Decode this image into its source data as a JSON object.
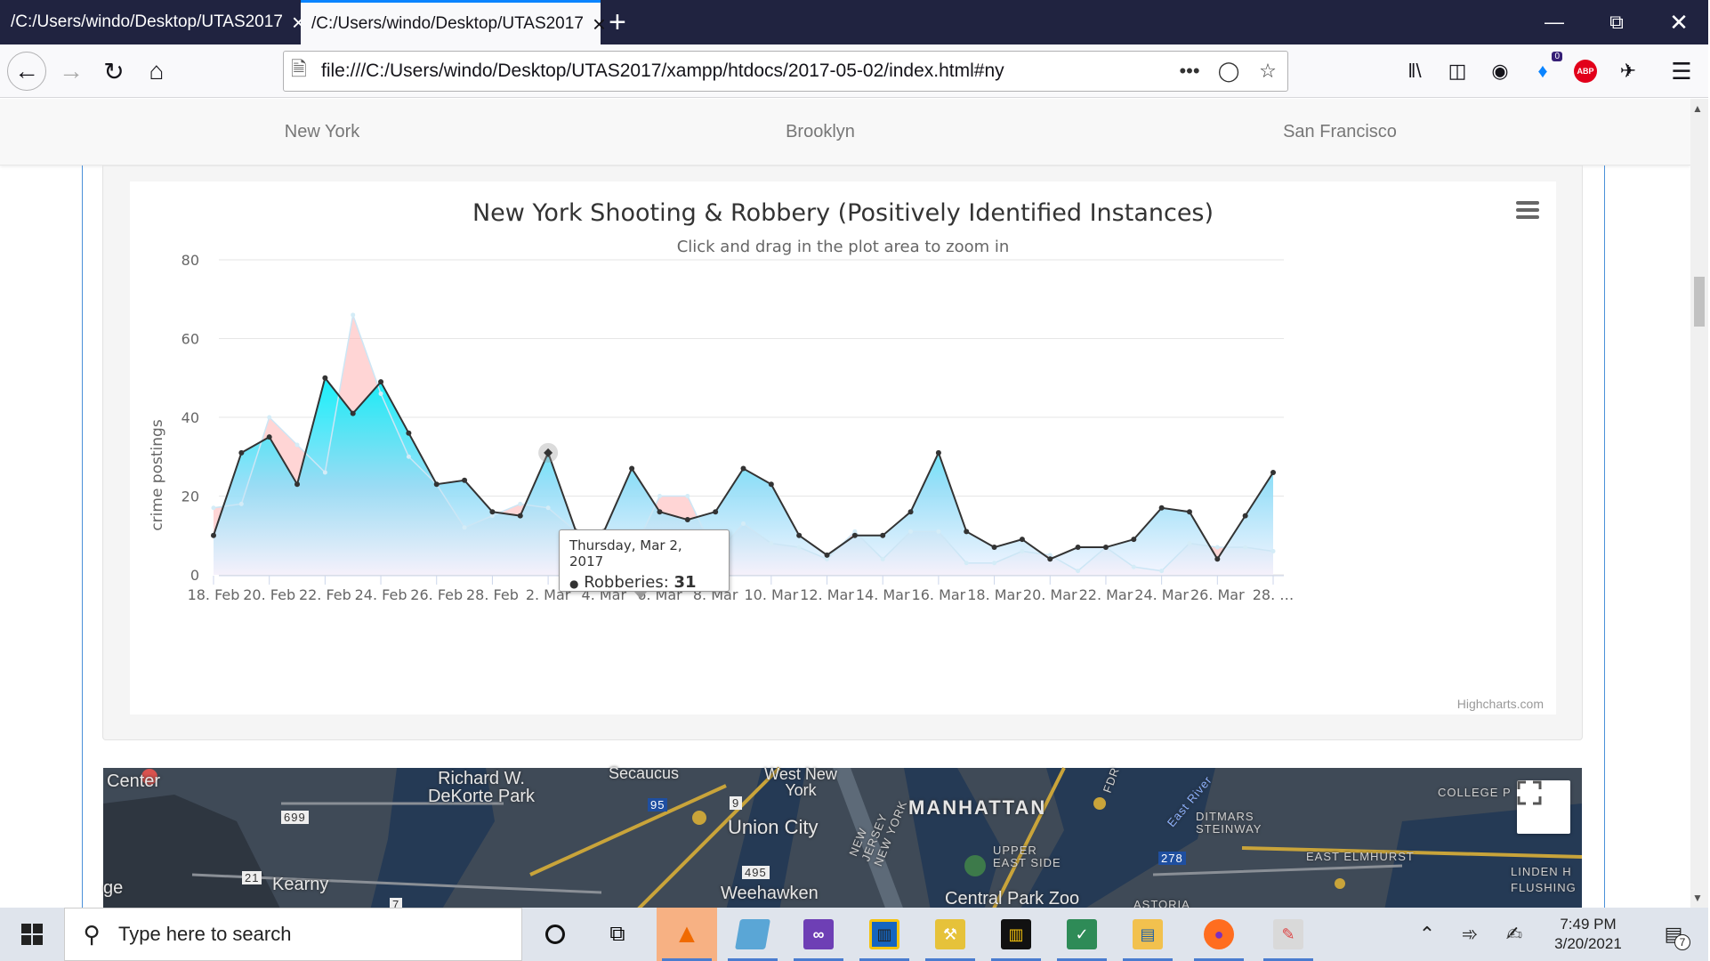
{
  "browser": {
    "tabs": [
      {
        "title": "/C:/Users/windo/Desktop/UTAS2017",
        "active": false
      },
      {
        "title": "/C:/Users/windo/Desktop/UTAS2017",
        "active": true
      }
    ],
    "url": "file:///C:/Users/windo/Desktop/UTAS2017/xampp/htdocs/2017-05-02/index.html#ny",
    "notification_count": "0",
    "abp_label": "ABP"
  },
  "nav": {
    "items": [
      "New York",
      "Brooklyn",
      "San Francisco"
    ]
  },
  "chart": {
    "subtitle": "Click and drag in the plot area to zoom in",
    "credits": "Highcharts.com",
    "tooltip": {
      "date": "Thursday, Mar 2, 2017",
      "series": "Robberies",
      "value": "31"
    }
  },
  "chart_data": {
    "type": "area",
    "title": "New York Shooting & Robbery (Positively Identified Instances)",
    "xlabel": "",
    "ylabel": "crime postings",
    "ylim": [
      0,
      80
    ],
    "yticks": [
      0,
      20,
      40,
      60,
      80
    ],
    "grid": true,
    "legend": "none",
    "xtick_labels": [
      "18. Feb",
      "20. Feb",
      "22. Feb",
      "24. Feb",
      "26. Feb",
      "28. Feb",
      "2. Mar",
      "4. Mar",
      "6. Mar",
      "8. Mar",
      "10. Mar",
      "12. Mar",
      "14. Mar",
      "16. Mar",
      "18. Mar",
      "20. Mar",
      "22. Mar",
      "24. Mar",
      "26. Mar",
      "28. …"
    ],
    "x": [
      "2017-02-18",
      "2017-02-19",
      "2017-02-20",
      "2017-02-21",
      "2017-02-22",
      "2017-02-23",
      "2017-02-24",
      "2017-02-25",
      "2017-02-26",
      "2017-02-27",
      "2017-02-28",
      "2017-03-01",
      "2017-03-02",
      "2017-03-03",
      "2017-03-04",
      "2017-03-05",
      "2017-03-06",
      "2017-03-07",
      "2017-03-08",
      "2017-03-09",
      "2017-03-10",
      "2017-03-11",
      "2017-03-12",
      "2017-03-13",
      "2017-03-14",
      "2017-03-15",
      "2017-03-16",
      "2017-03-17",
      "2017-03-18",
      "2017-03-19",
      "2017-03-20",
      "2017-03-21",
      "2017-03-22",
      "2017-03-23",
      "2017-03-24",
      "2017-03-25",
      "2017-03-26",
      "2017-03-27",
      "2017-03-28"
    ],
    "series": [
      {
        "name": "Robberies",
        "color": "#00e5ff",
        "values": [
          10,
          31,
          35,
          23,
          50,
          41,
          49,
          36,
          23,
          24,
          16,
          15,
          31,
          11,
          11,
          27,
          16,
          14,
          16,
          27,
          23,
          10,
          5,
          10,
          10,
          16,
          31,
          11,
          7,
          9,
          4,
          7,
          7,
          9,
          17,
          16,
          4,
          15,
          26
        ]
      },
      {
        "name": "",
        "color": "#ffb3b3",
        "values": [
          17,
          18,
          40,
          33,
          26,
          66,
          46,
          30,
          23,
          12,
          15,
          18,
          17,
          11,
          7,
          5,
          20,
          20,
          5,
          13,
          8,
          7,
          4,
          11,
          4,
          11,
          11,
          3,
          3,
          6,
          5,
          1,
          7,
          2,
          1,
          8,
          7,
          7,
          6
        ]
      }
    ],
    "highlight": {
      "index": 12
    }
  },
  "map": {
    "labels": [
      "Center",
      "Richard W. DeKorte Park",
      "Secaucus",
      "West New York",
      "Union City",
      "MANHATTAN",
      "NEW JERSEY NEW YORK",
      "DITMARS STEINWAY",
      "COLLEGE P",
      "UPPER EAST SIDE",
      "EAST ELMHURST",
      "LINDEN H FLUSHING",
      "Kearny",
      "Weehawken",
      "Central Park Zoo",
      "ASTORIA",
      "East River",
      "FDR",
      "ge"
    ],
    "shields": [
      "699",
      "95",
      "9",
      "495",
      "278",
      "21",
      "7"
    ]
  },
  "taskbar": {
    "search_placeholder": "Type here to search",
    "time": "7:49 PM",
    "date": "3/20/2021",
    "notification_count": "7"
  },
  "colors": {
    "tabbar": "#202340",
    "robberies_area": "#00e5ff",
    "shootings_area": "#ffb3b3",
    "accent": "#0a84ff"
  }
}
